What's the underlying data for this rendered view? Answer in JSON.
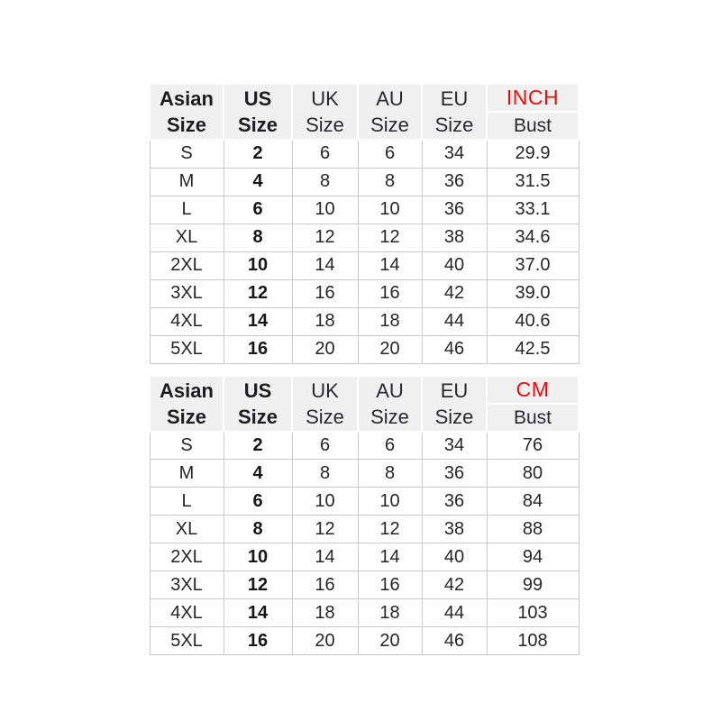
{
  "colors": {
    "unit_label": "#f20d0d",
    "header_background": "#f0f0f0",
    "grid_border": "#c9c9c9",
    "body_text": "#26262a",
    "page_background": "#ffffff"
  },
  "chart_data": [
    {
      "type": "table",
      "unit_system": "imperial",
      "header": {
        "asian": {
          "l1": "Asian",
          "l2": "Size"
        },
        "us": {
          "l1": "US",
          "l2": "Size"
        },
        "uk": {
          "l1": "UK",
          "l2": "Size"
        },
        "au": {
          "l1": "AU",
          "l2": "Size"
        },
        "eu": {
          "l1": "EU",
          "l2": "Size"
        },
        "unit": "INCH",
        "measure": "Bust"
      },
      "rows": [
        {
          "asian": "S",
          "us": "2",
          "uk": "6",
          "au": "6",
          "eu": "34",
          "bust": "29.9"
        },
        {
          "asian": "M",
          "us": "4",
          "uk": "8",
          "au": "8",
          "eu": "36",
          "bust": "31.5"
        },
        {
          "asian": "L",
          "us": "6",
          "uk": "10",
          "au": "10",
          "eu": "36",
          "bust": "33.1"
        },
        {
          "asian": "XL",
          "us": "8",
          "uk": "12",
          "au": "12",
          "eu": "38",
          "bust": "34.6"
        },
        {
          "asian": "2XL",
          "us": "10",
          "uk": "14",
          "au": "14",
          "eu": "40",
          "bust": "37.0"
        },
        {
          "asian": "3XL",
          "us": "12",
          "uk": "16",
          "au": "16",
          "eu": "42",
          "bust": "39.0"
        },
        {
          "asian": "4XL",
          "us": "14",
          "uk": "18",
          "au": "18",
          "eu": "44",
          "bust": "40.6"
        },
        {
          "asian": "5XL",
          "us": "16",
          "uk": "20",
          "au": "20",
          "eu": "46",
          "bust": "42.5"
        }
      ]
    },
    {
      "type": "table",
      "unit_system": "metric",
      "header": {
        "asian": {
          "l1": "Asian",
          "l2": "Size"
        },
        "us": {
          "l1": "US",
          "l2": "Size"
        },
        "uk": {
          "l1": "UK",
          "l2": "Size"
        },
        "au": {
          "l1": "AU",
          "l2": "Size"
        },
        "eu": {
          "l1": "EU",
          "l2": "Size"
        },
        "unit": "CM",
        "measure": "Bust"
      },
      "rows": [
        {
          "asian": "S",
          "us": "2",
          "uk": "6",
          "au": "6",
          "eu": "34",
          "bust": "76"
        },
        {
          "asian": "M",
          "us": "4",
          "uk": "8",
          "au": "8",
          "eu": "36",
          "bust": "80"
        },
        {
          "asian": "L",
          "us": "6",
          "uk": "10",
          "au": "10",
          "eu": "36",
          "bust": "84"
        },
        {
          "asian": "XL",
          "us": "8",
          "uk": "12",
          "au": "12",
          "eu": "38",
          "bust": "88"
        },
        {
          "asian": "2XL",
          "us": "10",
          "uk": "14",
          "au": "14",
          "eu": "40",
          "bust": "94"
        },
        {
          "asian": "3XL",
          "us": "12",
          "uk": "16",
          "au": "16",
          "eu": "42",
          "bust": "99"
        },
        {
          "asian": "4XL",
          "us": "14",
          "uk": "18",
          "au": "18",
          "eu": "44",
          "bust": "103"
        },
        {
          "asian": "5XL",
          "us": "16",
          "uk": "20",
          "au": "20",
          "eu": "46",
          "bust": "108"
        }
      ]
    }
  ]
}
